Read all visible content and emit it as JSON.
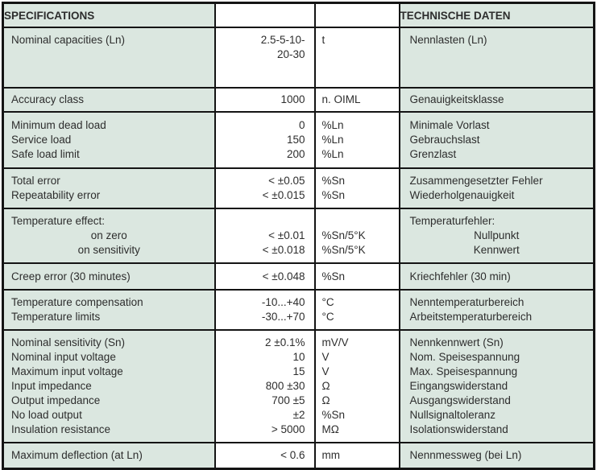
{
  "colors": {
    "cell_green": "#dbe7e0",
    "border": "#141414",
    "text": "#2d2d2d"
  },
  "table": {
    "header": {
      "specifications": "SPECIFICATIONS",
      "technische_daten": "TECHNISCHE DATEN"
    },
    "rows": [
      {
        "lines": [
          {
            "en": "Nominal capacities (Ln)",
            "value": "2.5-5-10-",
            "unit": "t",
            "de": "Nennlasten (Ln)"
          },
          {
            "en": "",
            "value": "20-30",
            "unit": "",
            "de": ""
          }
        ]
      },
      {
        "lines": [
          {
            "en": "Accuracy class",
            "value": "1000",
            "unit": "n. OIML",
            "de": "Genauigkeitsklasse"
          }
        ]
      },
      {
        "lines": [
          {
            "en": "Minimum dead load",
            "value": "0",
            "unit": "%Ln",
            "de": "Minimale Vorlast"
          },
          {
            "en": "Service load",
            "value": "150",
            "unit": "%Ln",
            "de": "Gebrauchslast"
          },
          {
            "en": "Safe load limit",
            "value": "200",
            "unit": "%Ln",
            "de": "Grenzlast"
          }
        ]
      },
      {
        "lines": [
          {
            "en": "Total error",
            "value": "< ±0.05",
            "unit": "%Sn",
            "de": "Zusammengesetzter Fehler"
          },
          {
            "en": "Repeatability error",
            "value": "< ±0.015",
            "unit": "%Sn",
            "de": "Wiederholgenauigkeit"
          }
        ]
      },
      {
        "lines": [
          {
            "en": "Temperature effect:",
            "value": "",
            "unit": "",
            "de": "Temperaturfehler:"
          },
          {
            "en": "on zero",
            "en_indent": true,
            "value": "< ±0.01",
            "unit": "%Sn/5°K",
            "de": "Nullpunkt",
            "de_indent": true
          },
          {
            "en": "on sensitivity",
            "en_indent": true,
            "value": "< ±0.018",
            "unit": "%Sn/5°K",
            "de": "Kennwert",
            "de_indent": true
          }
        ]
      },
      {
        "lines": [
          {
            "en": "Creep error (30 minutes)",
            "value": "< ±0.048",
            "unit": "%Sn",
            "de": "Kriechfehler (30 min)"
          }
        ]
      },
      {
        "lines": [
          {
            "en": "Temperature compensation",
            "value": "-10...+40",
            "unit": "°C",
            "de": "Nenntemperaturbereich"
          },
          {
            "en": "Temperature limits",
            "value": "-30...+70",
            "unit": "°C",
            "de": "Arbeitstemperaturbereich"
          }
        ]
      },
      {
        "lines": [
          {
            "en": "Nominal sensitivity (Sn)",
            "value": "2 ±0.1%",
            "unit": "mV/V",
            "de": "Nennkennwert (Sn)"
          },
          {
            "en": "Nominal input voltage",
            "value": "10",
            "unit": "V",
            "de": "Nom. Speisespannung"
          },
          {
            "en": "Maximum input voltage",
            "value": "15",
            "unit": "V",
            "de": "Max. Speisespannung"
          },
          {
            "en": "Input impedance",
            "value": "800 ±30",
            "unit": "Ω",
            "de": "Eingangswiderstand"
          },
          {
            "en": "Output impedance",
            "value": "700 ±5",
            "unit": "Ω",
            "de": "Ausgangswiderstand"
          },
          {
            "en": "No load output",
            "value": "±2",
            "unit": "%Sn",
            "de": "Nullsignaltoleranz"
          },
          {
            "en": "Insulation resistance",
            "value": "> 5000",
            "unit": "MΩ",
            "de": "Isolationswiderstand"
          }
        ]
      },
      {
        "lines": [
          {
            "en": "Maximum deflection (at Ln)",
            "value": "< 0.6",
            "unit": "mm",
            "de": "Nennmessweg (bei Ln)"
          }
        ]
      }
    ]
  }
}
